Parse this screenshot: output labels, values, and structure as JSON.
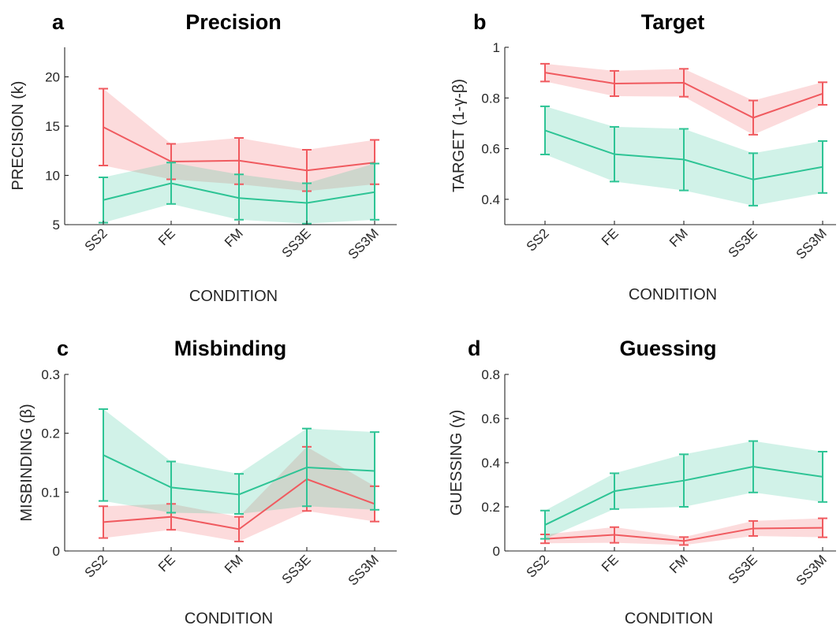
{
  "colors": {
    "red": "#F05A5F",
    "teal": "#2EC495",
    "axis": "#262626"
  },
  "chart_data": [
    {
      "type": "line",
      "panel_letter": "a",
      "title": "Precision",
      "xlabel": "CONDITION",
      "ylabel": "PRECISION (k)",
      "categories": [
        "SS2",
        "FE",
        "FM",
        "SS3E",
        "SS3M"
      ],
      "ylim": [
        5,
        23
      ],
      "yticks": [
        5,
        10,
        15,
        20
      ],
      "ytick_labels": [
        "5",
        "10",
        "15",
        "20"
      ],
      "series": [
        {
          "color": "red",
          "values": [
            14.9,
            11.4,
            11.5,
            10.5,
            11.3
          ],
          "lower": [
            11.0,
            9.6,
            9.1,
            8.4,
            9.1
          ],
          "upper": [
            18.8,
            13.2,
            13.8,
            12.6,
            13.6
          ]
        },
        {
          "color": "teal",
          "values": [
            7.5,
            9.2,
            7.7,
            7.2,
            8.3
          ],
          "lower": [
            5.2,
            7.1,
            5.5,
            5.1,
            5.5
          ],
          "upper": [
            9.8,
            11.3,
            10.1,
            9.2,
            11.2
          ]
        }
      ]
    },
    {
      "type": "line",
      "panel_letter": "b",
      "title": "Target",
      "xlabel": "CONDITION",
      "ylabel": "TARGET (1-γ-β)",
      "categories": [
        "SS2",
        "FE",
        "FM",
        "SS3E",
        "SS3M"
      ],
      "ylim": [
        0.3,
        1.0
      ],
      "yticks": [
        0.4,
        0.6,
        0.8,
        1.0
      ],
      "ytick_labels": [
        "0.4",
        "0.6",
        "0.8",
        "1"
      ],
      "series": [
        {
          "color": "red",
          "values": [
            0.9,
            0.857,
            0.86,
            0.722,
            0.817
          ],
          "lower": [
            0.865,
            0.807,
            0.805,
            0.655,
            0.773
          ],
          "upper": [
            0.935,
            0.907,
            0.915,
            0.79,
            0.862
          ]
        },
        {
          "color": "teal",
          "values": [
            0.672,
            0.578,
            0.557,
            0.478,
            0.528
          ],
          "lower": [
            0.577,
            0.47,
            0.435,
            0.375,
            0.425
          ],
          "upper": [
            0.767,
            0.686,
            0.678,
            0.582,
            0.63
          ]
        }
      ]
    },
    {
      "type": "line",
      "panel_letter": "c",
      "title": "Misbinding",
      "xlabel": "CONDITION",
      "ylabel": "MISBINDING (β)",
      "categories": [
        "SS2",
        "FE",
        "FM",
        "SS3E",
        "SS3M"
      ],
      "ylim": [
        0,
        0.3
      ],
      "yticks": [
        0,
        0.1,
        0.2,
        0.3
      ],
      "ytick_labels": [
        "0",
        "0.1",
        "0.2",
        "0.3"
      ],
      "series": [
        {
          "color": "red",
          "values": [
            0.049,
            0.058,
            0.037,
            0.122,
            0.08
          ],
          "lower": [
            0.022,
            0.036,
            0.016,
            0.068,
            0.05
          ],
          "upper": [
            0.076,
            0.08,
            0.058,
            0.177,
            0.11
          ]
        },
        {
          "color": "teal",
          "values": [
            0.163,
            0.108,
            0.096,
            0.142,
            0.136
          ],
          "lower": [
            0.085,
            0.065,
            0.063,
            0.076,
            0.07
          ],
          "upper": [
            0.241,
            0.152,
            0.131,
            0.208,
            0.202
          ]
        }
      ]
    },
    {
      "type": "line",
      "panel_letter": "d",
      "title": "Guessing",
      "xlabel": "CONDITION",
      "ylabel": "GUESSING (γ)",
      "categories": [
        "SS2",
        "FE",
        "FM",
        "SS3E",
        "SS3M"
      ],
      "ylim": [
        0,
        0.8
      ],
      "yticks": [
        0,
        0.2,
        0.4,
        0.6,
        0.8
      ],
      "ytick_labels": [
        "0",
        "0.2",
        "0.4",
        "0.6",
        "0.8"
      ],
      "series": [
        {
          "color": "red",
          "values": [
            0.055,
            0.073,
            0.045,
            0.102,
            0.105
          ],
          "lower": [
            0.035,
            0.037,
            0.027,
            0.068,
            0.062
          ],
          "upper": [
            0.075,
            0.108,
            0.063,
            0.136,
            0.148
          ]
        },
        {
          "color": "teal",
          "values": [
            0.118,
            0.271,
            0.319,
            0.382,
            0.336
          ],
          "lower": [
            0.055,
            0.19,
            0.2,
            0.265,
            0.222
          ],
          "upper": [
            0.183,
            0.352,
            0.438,
            0.498,
            0.45
          ]
        }
      ]
    }
  ]
}
